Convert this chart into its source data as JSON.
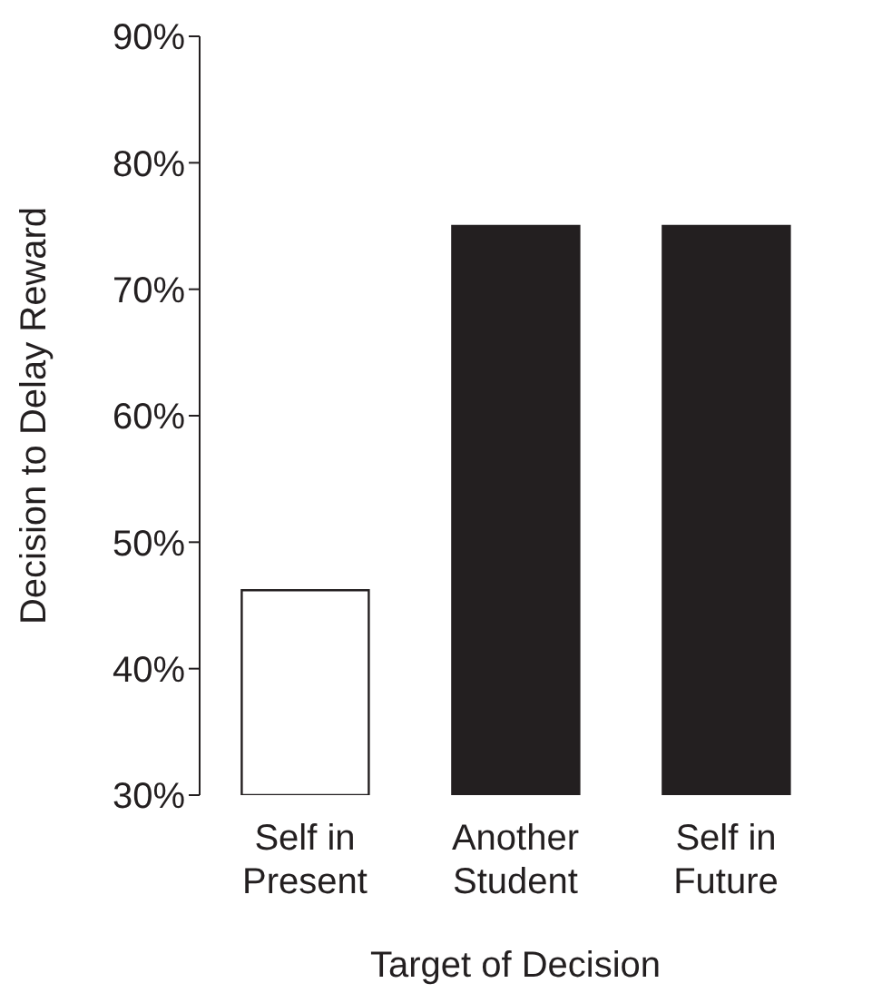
{
  "chart_data": {
    "type": "bar",
    "categories": [
      "Self in\nPresent",
      "Another\nStudent",
      "Self in\nFuture"
    ],
    "values": [
      46.2,
      75,
      75
    ],
    "colors": [
      "#ffffff",
      "#231f20",
      "#231f20"
    ],
    "xlabel": "Target of Decision",
    "ylabel": "Decision to Delay Reward",
    "ylim": [
      30,
      90
    ],
    "yticks": [
      {
        "value": 30,
        "label": "30%"
      },
      {
        "value": 40,
        "label": "40%"
      },
      {
        "value": 50,
        "label": "50%"
      },
      {
        "value": 60,
        "label": "60%"
      },
      {
        "value": 70,
        "label": "70%"
      },
      {
        "value": 80,
        "label": "80%"
      },
      {
        "value": 90,
        "label": "90%"
      }
    ],
    "grid": false,
    "legend": false
  }
}
